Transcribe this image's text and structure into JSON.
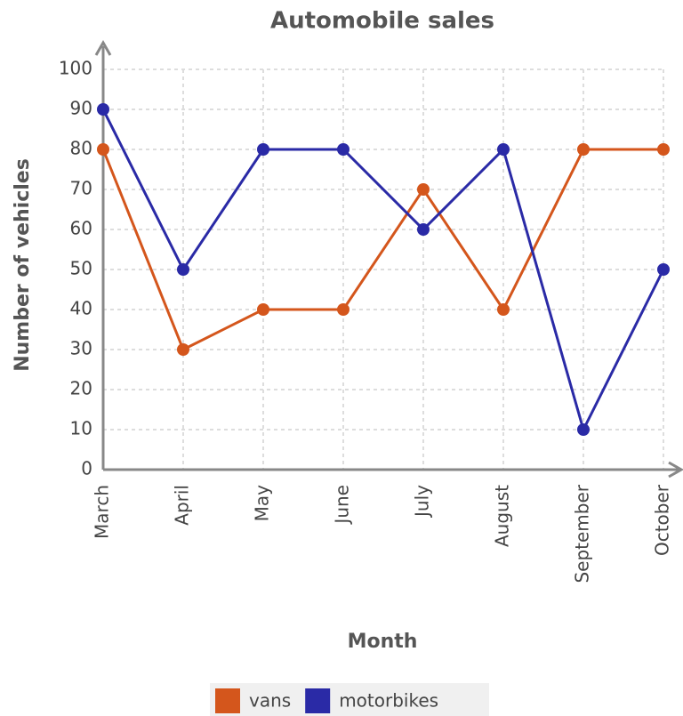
{
  "chart_data": {
    "type": "line",
    "title": "Automobile sales",
    "x_label": "Month",
    "y_label": "Number of vehicles",
    "categories": [
      "March",
      "April",
      "May",
      "June",
      "July",
      "August",
      "September",
      "October"
    ],
    "series": [
      {
        "name": "vans",
        "color": "#d4561c",
        "values": [
          80,
          30,
          40,
          40,
          70,
          40,
          80,
          80
        ]
      },
      {
        "name": "motorbikes",
        "color": "#2a2aa6",
        "values": [
          90,
          50,
          80,
          80,
          60,
          80,
          10,
          50
        ]
      }
    ],
    "ylim": [
      0,
      100
    ],
    "yticks": [
      0,
      10,
      20,
      30,
      40,
      50,
      60,
      70,
      80,
      90,
      100
    ],
    "grid": true,
    "legend": "bottom"
  }
}
